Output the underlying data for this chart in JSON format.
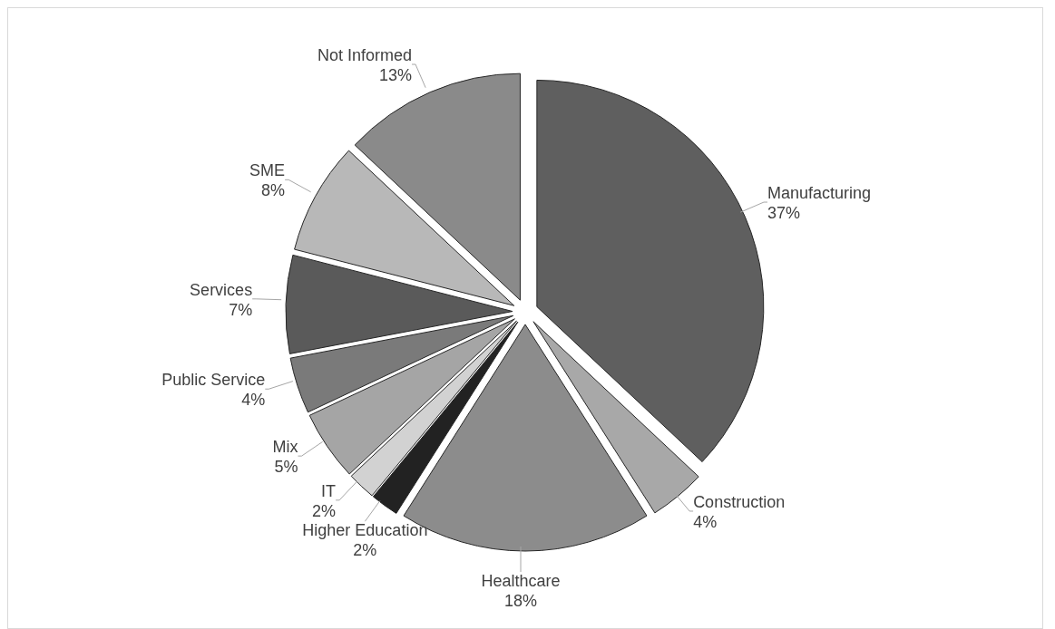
{
  "chart_data": {
    "type": "pie",
    "categories": [
      "Manufacturing",
      "Construction",
      "Healthcare",
      "Higher Education",
      "IT",
      "Mix",
      "Public Service",
      "Services",
      "SME",
      "Not Informed"
    ],
    "values": [
      37,
      4,
      18,
      2,
      2,
      5,
      4,
      7,
      8,
      13
    ],
    "colors": [
      "#5f5f5f",
      "#a8a8a8",
      "#8c8c8c",
      "#222222",
      "#d2d2d2",
      "#a5a5a5",
      "#7a7a7a",
      "#5a5a5a",
      "#b8b8b8",
      "#8a8a8a"
    ],
    "value_labels": [
      "37%",
      "4%",
      "18%",
      "2%",
      "2%",
      "5%",
      "4%",
      "7%",
      "8%",
      "13%"
    ],
    "legend": false
  }
}
